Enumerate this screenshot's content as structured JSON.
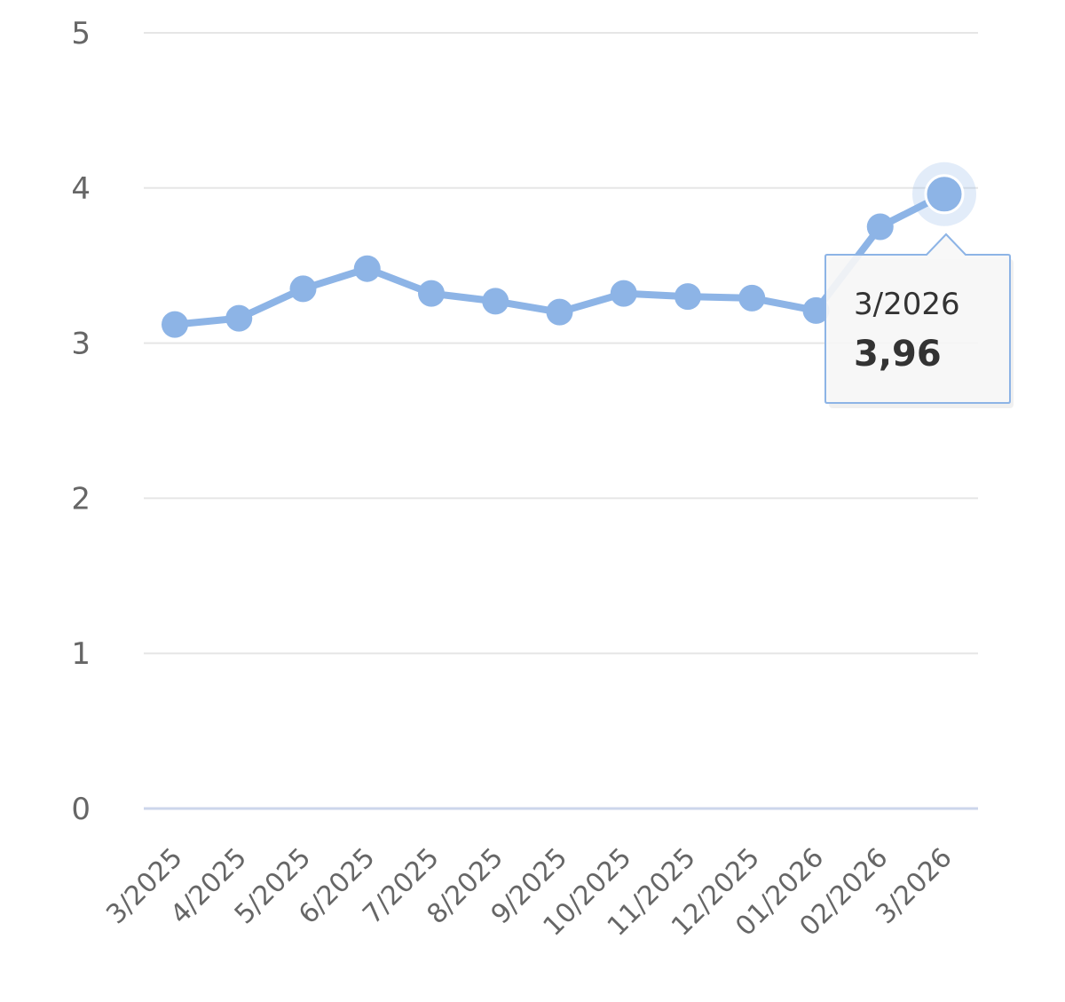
{
  "chart_data": {
    "type": "line",
    "categories": [
      "3/2025",
      "4/2025",
      "5/2025",
      "6/2025",
      "7/2025",
      "8/2025",
      "9/2025",
      "10/2025",
      "11/2025",
      "12/2025",
      "01/2026",
      "02/2026",
      "3/2026"
    ],
    "series": [
      {
        "values": [
          3.12,
          3.16,
          3.35,
          3.48,
          3.32,
          3.27,
          3.2,
          3.32,
          3.3,
          3.29,
          3.21,
          3.75,
          3.96
        ]
      }
    ],
    "ylim": [
      0,
      5
    ],
    "yticks": [
      "0",
      "1",
      "2",
      "3",
      "4",
      "5"
    ],
    "grid": true,
    "color": "#8db4e6",
    "tooltip": {
      "category": "3/2026",
      "value": "3,96"
    }
  }
}
